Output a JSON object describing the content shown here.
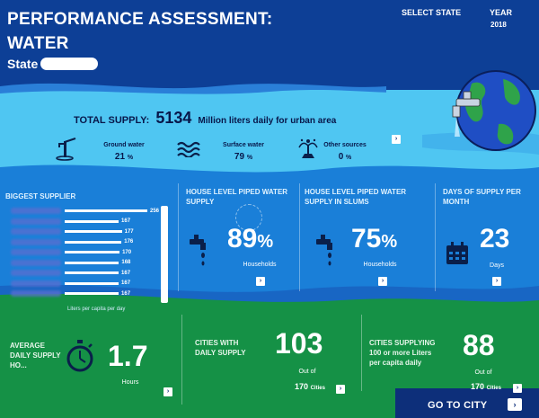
{
  "header": {
    "title_line1": "PERFORMANCE ASSESSMENT:",
    "title_line2": "WATER",
    "state_label": "State",
    "select_state": "SELECT STATE",
    "year_label": "YEAR",
    "year_value": "2018"
  },
  "total_supply": {
    "label": "TOTAL SUPPLY:",
    "value": "5134",
    "unit": "Million liters daily for urban area"
  },
  "sources": [
    {
      "name": "Ground water",
      "value": "21",
      "unit": "%",
      "icon": "handpump-icon"
    },
    {
      "name": "Surface water",
      "value": "79",
      "unit": "%",
      "icon": "waves-icon"
    },
    {
      "name": "Other sources",
      "value": "0",
      "unit": "%",
      "icon": "fountain-icon"
    }
  ],
  "biggest_supplier": {
    "heading": "BIGGEST SUPPLIER",
    "footer": "Liters per capita per day",
    "values": [
      256,
      167,
      177,
      176,
      170,
      168,
      167,
      167,
      167
    ]
  },
  "house_piped": {
    "heading": "HOUSE LEVEL PIPED WATER SUPPLY",
    "value": "89",
    "unit": "%",
    "sub": "Households"
  },
  "house_piped_slums": {
    "heading": "HOUSE LEVEL PIPED WATER SUPPLY IN SLUMS",
    "value": "75",
    "unit": "%",
    "sub": "Households"
  },
  "days_supply": {
    "heading": "DAYS OF SUPPLY PER MONTH",
    "value": "23",
    "sub": "Days"
  },
  "avg_daily": {
    "heading": "AVERAGE DAILY SUPPLY HO...",
    "value": "1.7",
    "sub": "Hours"
  },
  "cities_daily": {
    "heading": "CITIES WITH DAILY SUPPLY",
    "value": "103",
    "out_of": "Out of",
    "total": "170",
    "total_unit": "Cities"
  },
  "cities_100": {
    "heading": "CITIES SUPPLYING 100 or more Liters per capita daily",
    "value": "88",
    "out_of": "Out of",
    "total": "170",
    "total_unit": "Cities"
  },
  "footer": {
    "goto_label": "GO TO CITY"
  },
  "colors": {
    "navy": "#0d3f96",
    "sky": "#4fc6f2",
    "mid": "#1a7fd8",
    "green": "#159146"
  }
}
